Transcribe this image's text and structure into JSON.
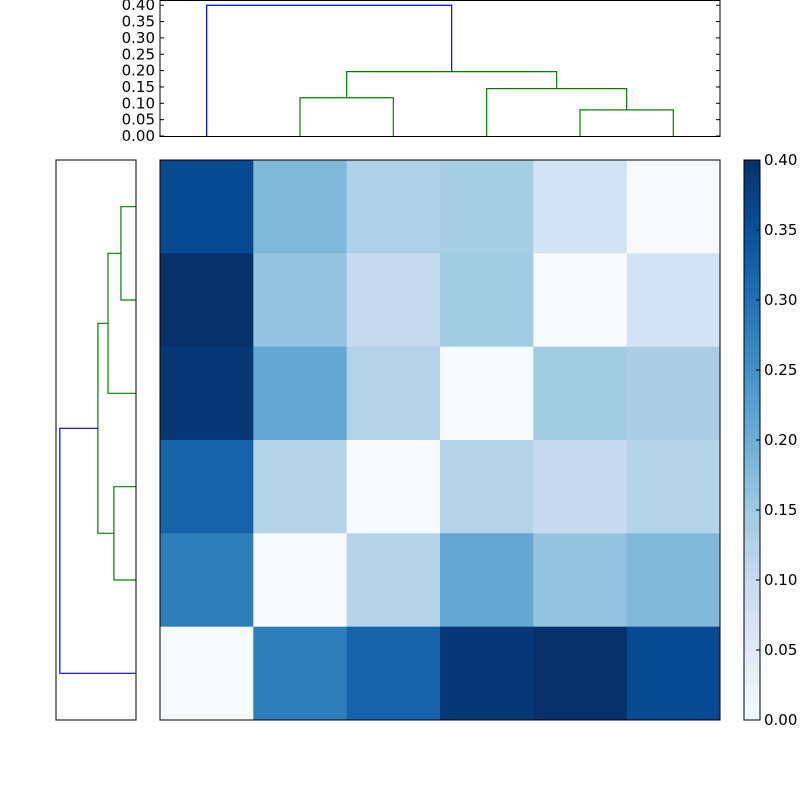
{
  "chart_data": [
    {
      "type": "dendrogram",
      "orientation": "top",
      "ylim": [
        0,
        0.416
      ],
      "yticks": [
        "0.00",
        "0.05",
        "0.10",
        "0.15",
        "0.20",
        "0.25",
        "0.30",
        "0.35",
        "0.40"
      ],
      "links": [
        {
          "left": 4,
          "right": 5,
          "height": 0.08,
          "color": "#008000"
        },
        {
          "left": 3,
          "right": 4.5,
          "height": 0.145,
          "color": "#008000"
        },
        {
          "left": 1,
          "right": 2,
          "height": 0.117,
          "color": "#008000"
        },
        {
          "left": 1.5,
          "right": 3.75,
          "height": 0.197,
          "color": "#008000"
        },
        {
          "left": 0,
          "right": 2.625,
          "height": 0.4,
          "color": "#0000ff"
        }
      ]
    },
    {
      "type": "dendrogram",
      "orientation": "left",
      "xlim": [
        0.42,
        0
      ],
      "links": [
        {
          "left": 0,
          "right": 1,
          "height": 0.079,
          "color": "#008000"
        },
        {
          "left": 0.5,
          "right": 2,
          "height": 0.147,
          "color": "#008000"
        },
        {
          "left": 3,
          "right": 4,
          "height": 0.116,
          "color": "#008000"
        },
        {
          "left": 1.25,
          "right": 3.5,
          "height": 0.2,
          "color": "#008000"
        },
        {
          "left": 2.375,
          "right": 5,
          "height": 0.4,
          "color": "#0000ff"
        }
      ]
    },
    {
      "type": "heatmap",
      "colormap": "Blues",
      "vmin": 0,
      "vmax": 0.4,
      "values": [
        [
          0.36,
          0.18,
          0.13,
          0.14,
          0.075,
          0.0
        ],
        [
          0.4,
          0.16,
          0.1,
          0.145,
          0.0,
          0.075
        ],
        [
          0.39,
          0.21,
          0.125,
          0.0,
          0.145,
          0.135
        ],
        [
          0.32,
          0.12,
          0.0,
          0.125,
          0.1,
          0.12
        ],
        [
          0.28,
          0.0,
          0.12,
          0.21,
          0.16,
          0.18
        ],
        [
          0.0,
          0.28,
          0.32,
          0.39,
          0.4,
          0.36
        ]
      ],
      "colorbar_ticks": [
        "0.00",
        "0.05",
        "0.10",
        "0.15",
        "0.20",
        "0.25",
        "0.30",
        "0.35",
        "0.40"
      ]
    }
  ]
}
